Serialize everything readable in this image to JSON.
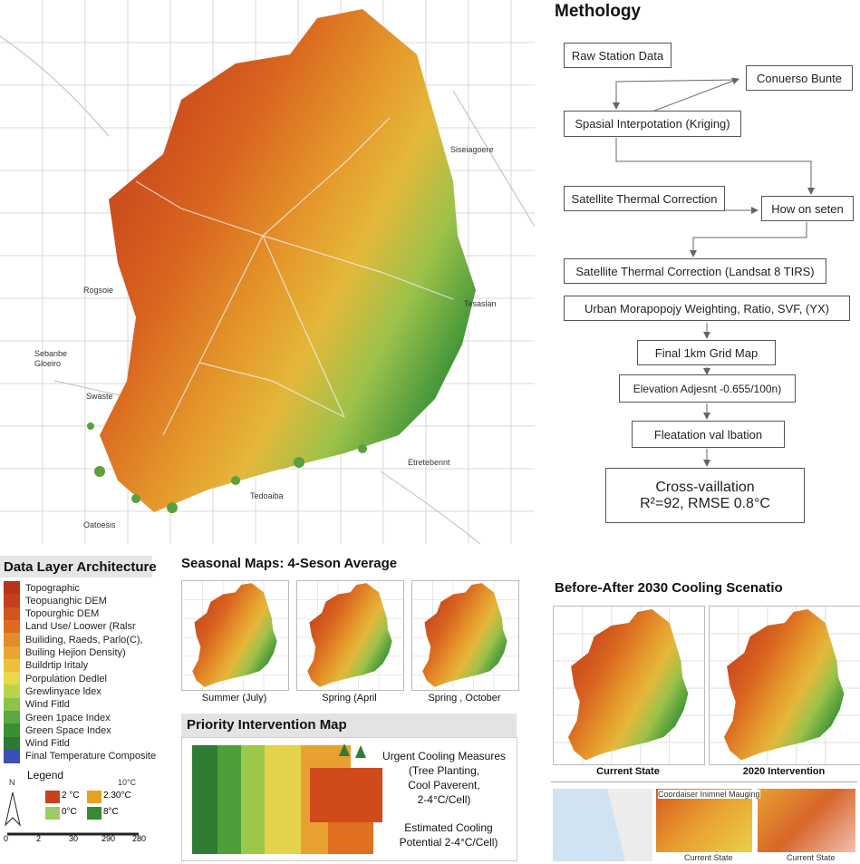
{
  "map": {
    "labels": [
      "Siseiagoere",
      "Rogsoie",
      "Sebanbe",
      "Gloeiro",
      "Swaste",
      "Tesaslan",
      "Etretebennt",
      "Tedoaiba",
      "Oatoesis"
    ]
  },
  "methodology": {
    "title": "Methology",
    "steps": [
      "Raw Station Data",
      "Conuerso Bunte",
      "Spasial Interpotation (Kriging)",
      "Satellite Thermal Correction",
      "How on seten",
      "Satellite Thermal Correction (Landsat 8 TIRS)",
      "Urban Morapopojy Weighting, Ratio, SVF, (YX)",
      "Final 1km Grid Map",
      "Elevation Adjesnt -0.655/100n)",
      "Fleatation val lbation"
    ],
    "result": [
      "Cross-vaillation",
      "R²=92, RMSE 0.8°C"
    ]
  },
  "data_layers": {
    "title": "Data Layer Architecture",
    "items": [
      {
        "label": "Topographic",
        "color": "#b8321c"
      },
      {
        "label": "Teopuanghic DEM",
        "color": "#c73e1d"
      },
      {
        "label": "Topourghic DEM",
        "color": "#d4541f"
      },
      {
        "label": "Land Use/ Loower (Ralsr",
        "color": "#de6a22"
      },
      {
        "label": "Builiding, Raeds, Parlo(C),",
        "color": "#e38a2a"
      },
      {
        "label": "Builing Hejion Density)",
        "color": "#e8a530"
      },
      {
        "label": "Buildrtip Iritaly",
        "color": "#eac23a"
      },
      {
        "label": "Porpulation Dedlel",
        "color": "#e8d84a"
      },
      {
        "label": "Grewlinyace ldex",
        "color": "#b8d44c"
      },
      {
        "label": "Wind Fitld",
        "color": "#8cc34a"
      },
      {
        "label": "Green 1pace Index",
        "color": "#5aa83e"
      },
      {
        "label": "Green Space Index",
        "color": "#3a8f35"
      },
      {
        "label": "Wind Fitld",
        "color": "#2a7a30"
      },
      {
        "label": "Final Temperature Composite",
        "color": "#3c4fb8"
      }
    ],
    "legend": {
      "title": "Legend",
      "top_label": "10°C",
      "items": [
        {
          "label": "2 °C",
          "color": "#c8401e"
        },
        {
          "label": "2.30°C",
          "color": "#e8a020"
        },
        {
          "label": "0°C",
          "color": "#9ccc65"
        },
        {
          "label": "8°C",
          "color": "#3a8a34"
        }
      ],
      "north": "N",
      "scale": [
        "0",
        "2",
        "30",
        "290",
        "280"
      ]
    }
  },
  "seasonal": {
    "title": "Seasonal Maps: 4-Seson Average",
    "captions": [
      "Summer (July)",
      "Spring (April",
      "Spring , October"
    ]
  },
  "priority": {
    "title": "Priority Intervention Map",
    "measures": [
      "Urgent Cooling Measures",
      "(Tree Planting,",
      "Cool Paverent,",
      "2-4°C/Cell)"
    ],
    "potential": [
      "Estimated Cooling",
      "Potential 2-4°C/Cell)"
    ]
  },
  "before_after": {
    "title": "Before-After 2030 Cooling Scenatio",
    "captions": [
      "Current State",
      "2020 Intervention"
    ],
    "inset_title": "Coordaiser Inimnel Mauging",
    "inset_captions": [
      "Current State",
      "Current State"
    ]
  }
}
